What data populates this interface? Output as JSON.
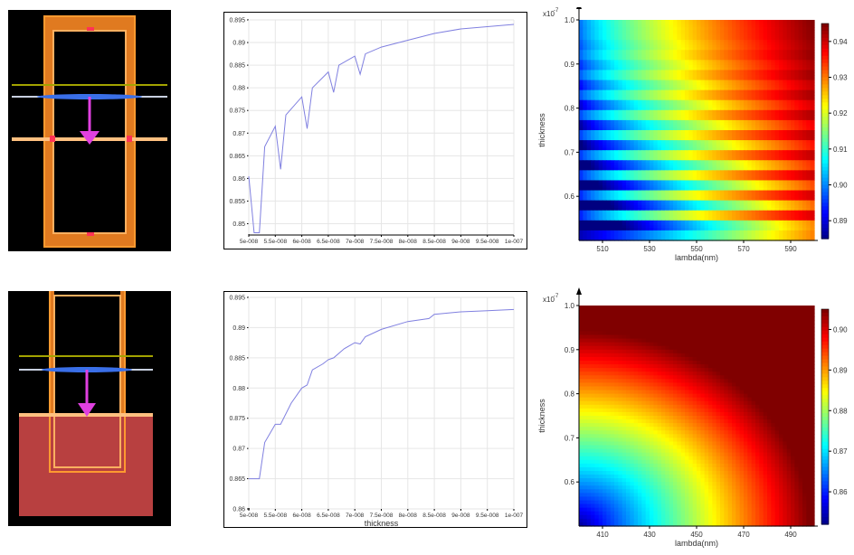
{
  "chart_data": [
    {
      "type": "scene",
      "colors": {
        "background": "#000000",
        "frame": "#ff8c1a",
        "frame_fill": "#e07a20",
        "line_olive": "#a3a300",
        "line_white": "#c8d0e0",
        "line_orange": "#ffc080",
        "arrow": "#e040e0",
        "marker": "#ff3355",
        "beam": "#3a6fe8"
      }
    },
    {
      "type": "line",
      "xlabel": "",
      "ylabel": "",
      "xlim": [
        5e-08,
        1e-07
      ],
      "ylim": [
        0.8475,
        0.895
      ],
      "x_ticks": [
        "5e-008",
        "5.5e-008",
        "6e-008",
        "6.5e-008",
        "7e-008",
        "7.5e-008",
        "8e-008",
        "8.5e-008",
        "9e-008",
        "9.5e-008",
        "1e-007"
      ],
      "y_ticks": [
        "0.85",
        "0.855",
        "0.86",
        "0.865",
        "0.87",
        "0.875",
        "0.88",
        "0.885",
        "0.89",
        "0.895"
      ],
      "series": [
        {
          "color": "#8080e0",
          "x": [
            5e-08,
            5.1e-08,
            5.2e-08,
            5.3e-08,
            5.5e-08,
            5.6e-08,
            5.7e-08,
            6e-08,
            6.1e-08,
            6.2e-08,
            6.5e-08,
            6.6e-08,
            6.7e-08,
            7e-08,
            7.1e-08,
            7.2e-08,
            7.5e-08,
            8e-08,
            8.5e-08,
            9e-08,
            9.5e-08,
            1e-07
          ],
          "y": [
            0.8605,
            0.848,
            0.848,
            0.867,
            0.8715,
            0.862,
            0.874,
            0.878,
            0.871,
            0.88,
            0.8835,
            0.879,
            0.885,
            0.887,
            0.883,
            0.8875,
            0.889,
            0.8905,
            0.892,
            0.893,
            0.8935,
            0.894
          ]
        }
      ]
    },
    {
      "type": "heatmap",
      "xlabel": "lambda(nm)",
      "ylabel": "thickness",
      "y_exponent": "x10",
      "y_exponent_power": "-7",
      "x_ticks": [
        "510",
        "530",
        "550",
        "570",
        "590"
      ],
      "y_ticks": [
        "0.6",
        "0.7",
        "0.8",
        "0.9",
        "1.0"
      ],
      "xlim": [
        500,
        600
      ],
      "ylim": [
        0.5,
        1.0
      ],
      "colorbar_ticks": [
        "0.89",
        "0.90",
        "0.91",
        "0.92",
        "0.93",
        "0.94"
      ],
      "colorbar_range": [
        0.885,
        0.945
      ],
      "banded": true
    },
    {
      "type": "scene",
      "colors": {
        "background": "#000000",
        "frame": "#ff8c1a",
        "substrate": "#b84040",
        "line_olive": "#a3a300",
        "line_white": "#c8d0e0",
        "line_orange": "#ffc080",
        "arrow": "#e040e0",
        "beam": "#3a6fe8"
      }
    },
    {
      "type": "line",
      "xlabel": "thickness",
      "ylabel": "",
      "xlim": [
        5e-08,
        1e-07
      ],
      "ylim": [
        0.86,
        0.895
      ],
      "x_ticks": [
        "5e-008",
        "5.5e-008",
        "6e-008",
        "6.5e-008",
        "7e-008",
        "7.5e-008",
        "8e-008",
        "8.5e-008",
        "9e-008",
        "9.5e-008",
        "1e-007"
      ],
      "y_ticks": [
        "0.86",
        "0.865",
        "0.87",
        "0.875",
        "0.88",
        "0.885",
        "0.89",
        "0.895"
      ],
      "series": [
        {
          "color": "#8080e0",
          "x": [
            5e-08,
            5.2e-08,
            5.3e-08,
            5.5e-08,
            5.6e-08,
            5.8e-08,
            6e-08,
            6.1e-08,
            6.2e-08,
            6.4e-08,
            6.5e-08,
            6.6e-08,
            6.8e-08,
            7e-08,
            7.1e-08,
            7.2e-08,
            7.5e-08,
            8e-08,
            8.4e-08,
            8.5e-08,
            9e-08,
            9.5e-08,
            1e-07
          ],
          "y": [
            0.865,
            0.865,
            0.871,
            0.874,
            0.874,
            0.8775,
            0.88,
            0.8805,
            0.883,
            0.884,
            0.8847,
            0.885,
            0.8865,
            0.8875,
            0.8873,
            0.8885,
            0.8897,
            0.891,
            0.8915,
            0.8922,
            0.8926,
            0.8928,
            0.893
          ]
        }
      ]
    },
    {
      "type": "heatmap",
      "xlabel": "lambda(nm)",
      "ylabel": "thickness",
      "y_exponent": "x10",
      "y_exponent_power": "-7",
      "x_ticks": [
        "410",
        "430",
        "450",
        "470",
        "490"
      ],
      "y_ticks": [
        "0.6",
        "0.7",
        "0.8",
        "0.9",
        "1.0"
      ],
      "xlim": [
        400,
        500
      ],
      "ylim": [
        0.5,
        1.0
      ],
      "colorbar_ticks": [
        "0.86",
        "0.87",
        "0.88",
        "0.89",
        "0.90"
      ],
      "colorbar_range": [
        0.852,
        0.905
      ],
      "banded": false
    }
  ]
}
